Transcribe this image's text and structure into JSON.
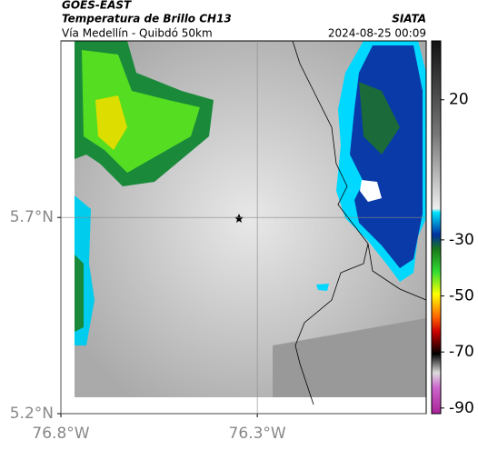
{
  "header": {
    "title": "GOES-EAST",
    "subtitle": "Temperatura de Brillo CH13",
    "source": "SIATA",
    "route": "Vía Medellín - Quibdó 50km",
    "timestamp": "2024-08-25 00:09"
  },
  "map": {
    "xlim": [
      -76.8,
      -75.87
    ],
    "ylim": [
      5.2,
      6.15
    ],
    "xticks": [
      {
        "value": -76.8,
        "label": "76.8°W"
      },
      {
        "value": -76.3,
        "label": "76.3°W"
      }
    ],
    "yticks": [
      {
        "value": 5.2,
        "label": "5.2°N"
      },
      {
        "value": 5.7,
        "label": "5.7°N"
      }
    ],
    "grid": true
  },
  "colorbar": {
    "lim": [
      -92,
      41
    ],
    "ticks": [
      20,
      -30,
      -50,
      -70,
      -90
    ]
  }
}
